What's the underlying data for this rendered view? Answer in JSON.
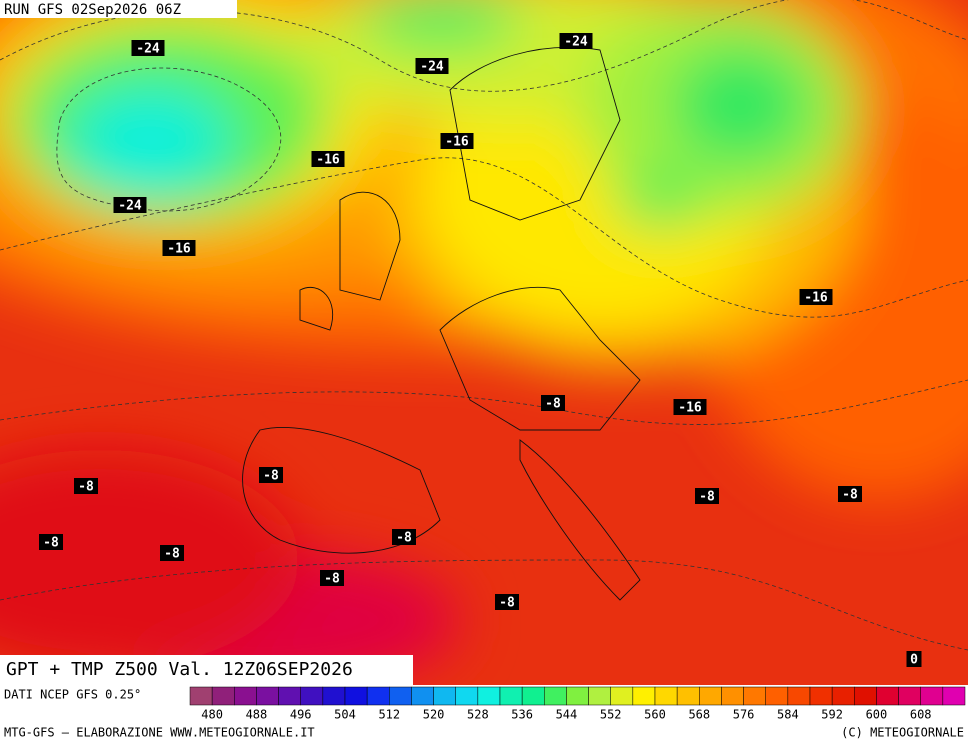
{
  "run_label": "RUN GFS 02Sep2026 06Z",
  "map_title": "GPT + TMP Z500 Val. 12Z06SEP2026",
  "contour_labels": [
    "-24",
    "-24",
    "-24",
    "-16",
    "-16",
    "-24",
    "-16",
    "-16",
    "-8",
    "-16",
    "-8",
    "-8",
    "-8",
    "-8",
    "-8",
    "-8",
    "-8",
    "-8",
    "-8",
    "0"
  ],
  "colorbar": {
    "source": "DATI NCEP GFS 0.25°",
    "labels": [
      480,
      488,
      496,
      504,
      512,
      520,
      528,
      536,
      544,
      552,
      560,
      568,
      576,
      584,
      592,
      600,
      608
    ],
    "colors": [
      "#a04070",
      "#90207a",
      "#8a1090",
      "#7a10a0",
      "#6010b0",
      "#4010c0",
      "#2010d0",
      "#1010e0",
      "#1030f0",
      "#1060f0",
      "#1090f0",
      "#10b8f0",
      "#10d8f0",
      "#10f0e0",
      "#10f0b0",
      "#10f090",
      "#40f060",
      "#80f040",
      "#b0f040",
      "#e0f020",
      "#fff000",
      "#ffd800",
      "#ffc000",
      "#ffa800",
      "#ff9000",
      "#ff7800",
      "#ff6000",
      "#f84800",
      "#f03000",
      "#e82000",
      "#e01000",
      "#e00030",
      "#e00060",
      "#e00090",
      "#e000b0"
    ]
  },
  "footer": {
    "left": "MTG-GFS — ELABORAZIONE WWW.METEOGIORNALE.IT",
    "right": "(C) METEOGIORNALE"
  }
}
